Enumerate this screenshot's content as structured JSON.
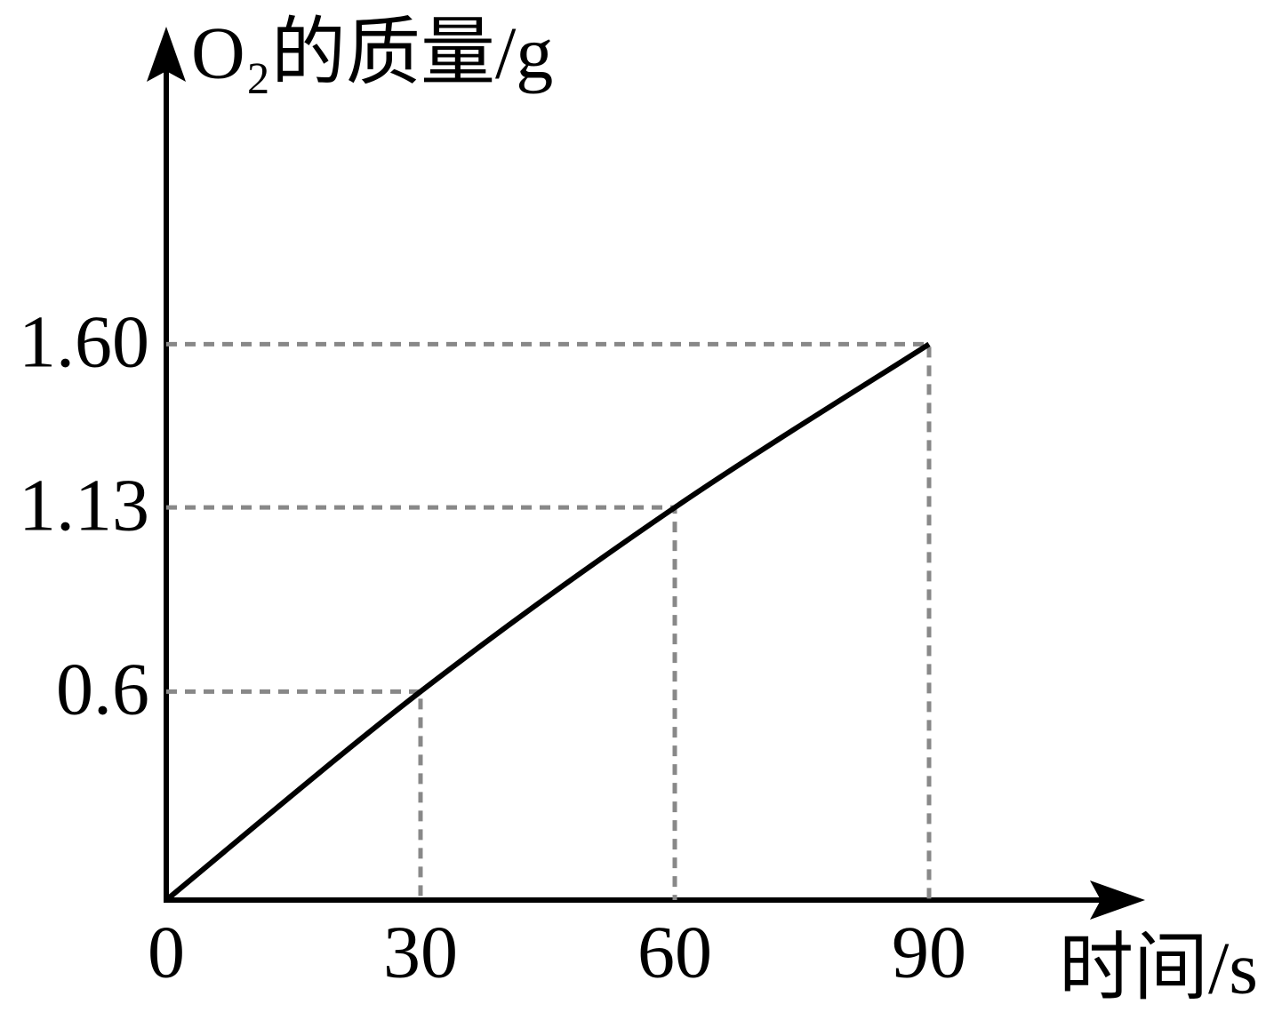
{
  "chart_data": {
    "type": "line",
    "y_axis_label": "O₂的质量/g",
    "x_axis_label": "时间/s",
    "x": [
      0,
      30,
      60,
      90
    ],
    "values": [
      0,
      0.6,
      1.13,
      1.6
    ],
    "color": "#000000",
    "xlim": [
      0,
      115
    ],
    "ylim": [
      0,
      2.5
    ],
    "xticks": [
      0,
      30,
      60,
      90
    ],
    "yticks": [
      0.6,
      1.13,
      {
        "value": 1.6,
        "label": "1.60"
      }
    ]
  }
}
